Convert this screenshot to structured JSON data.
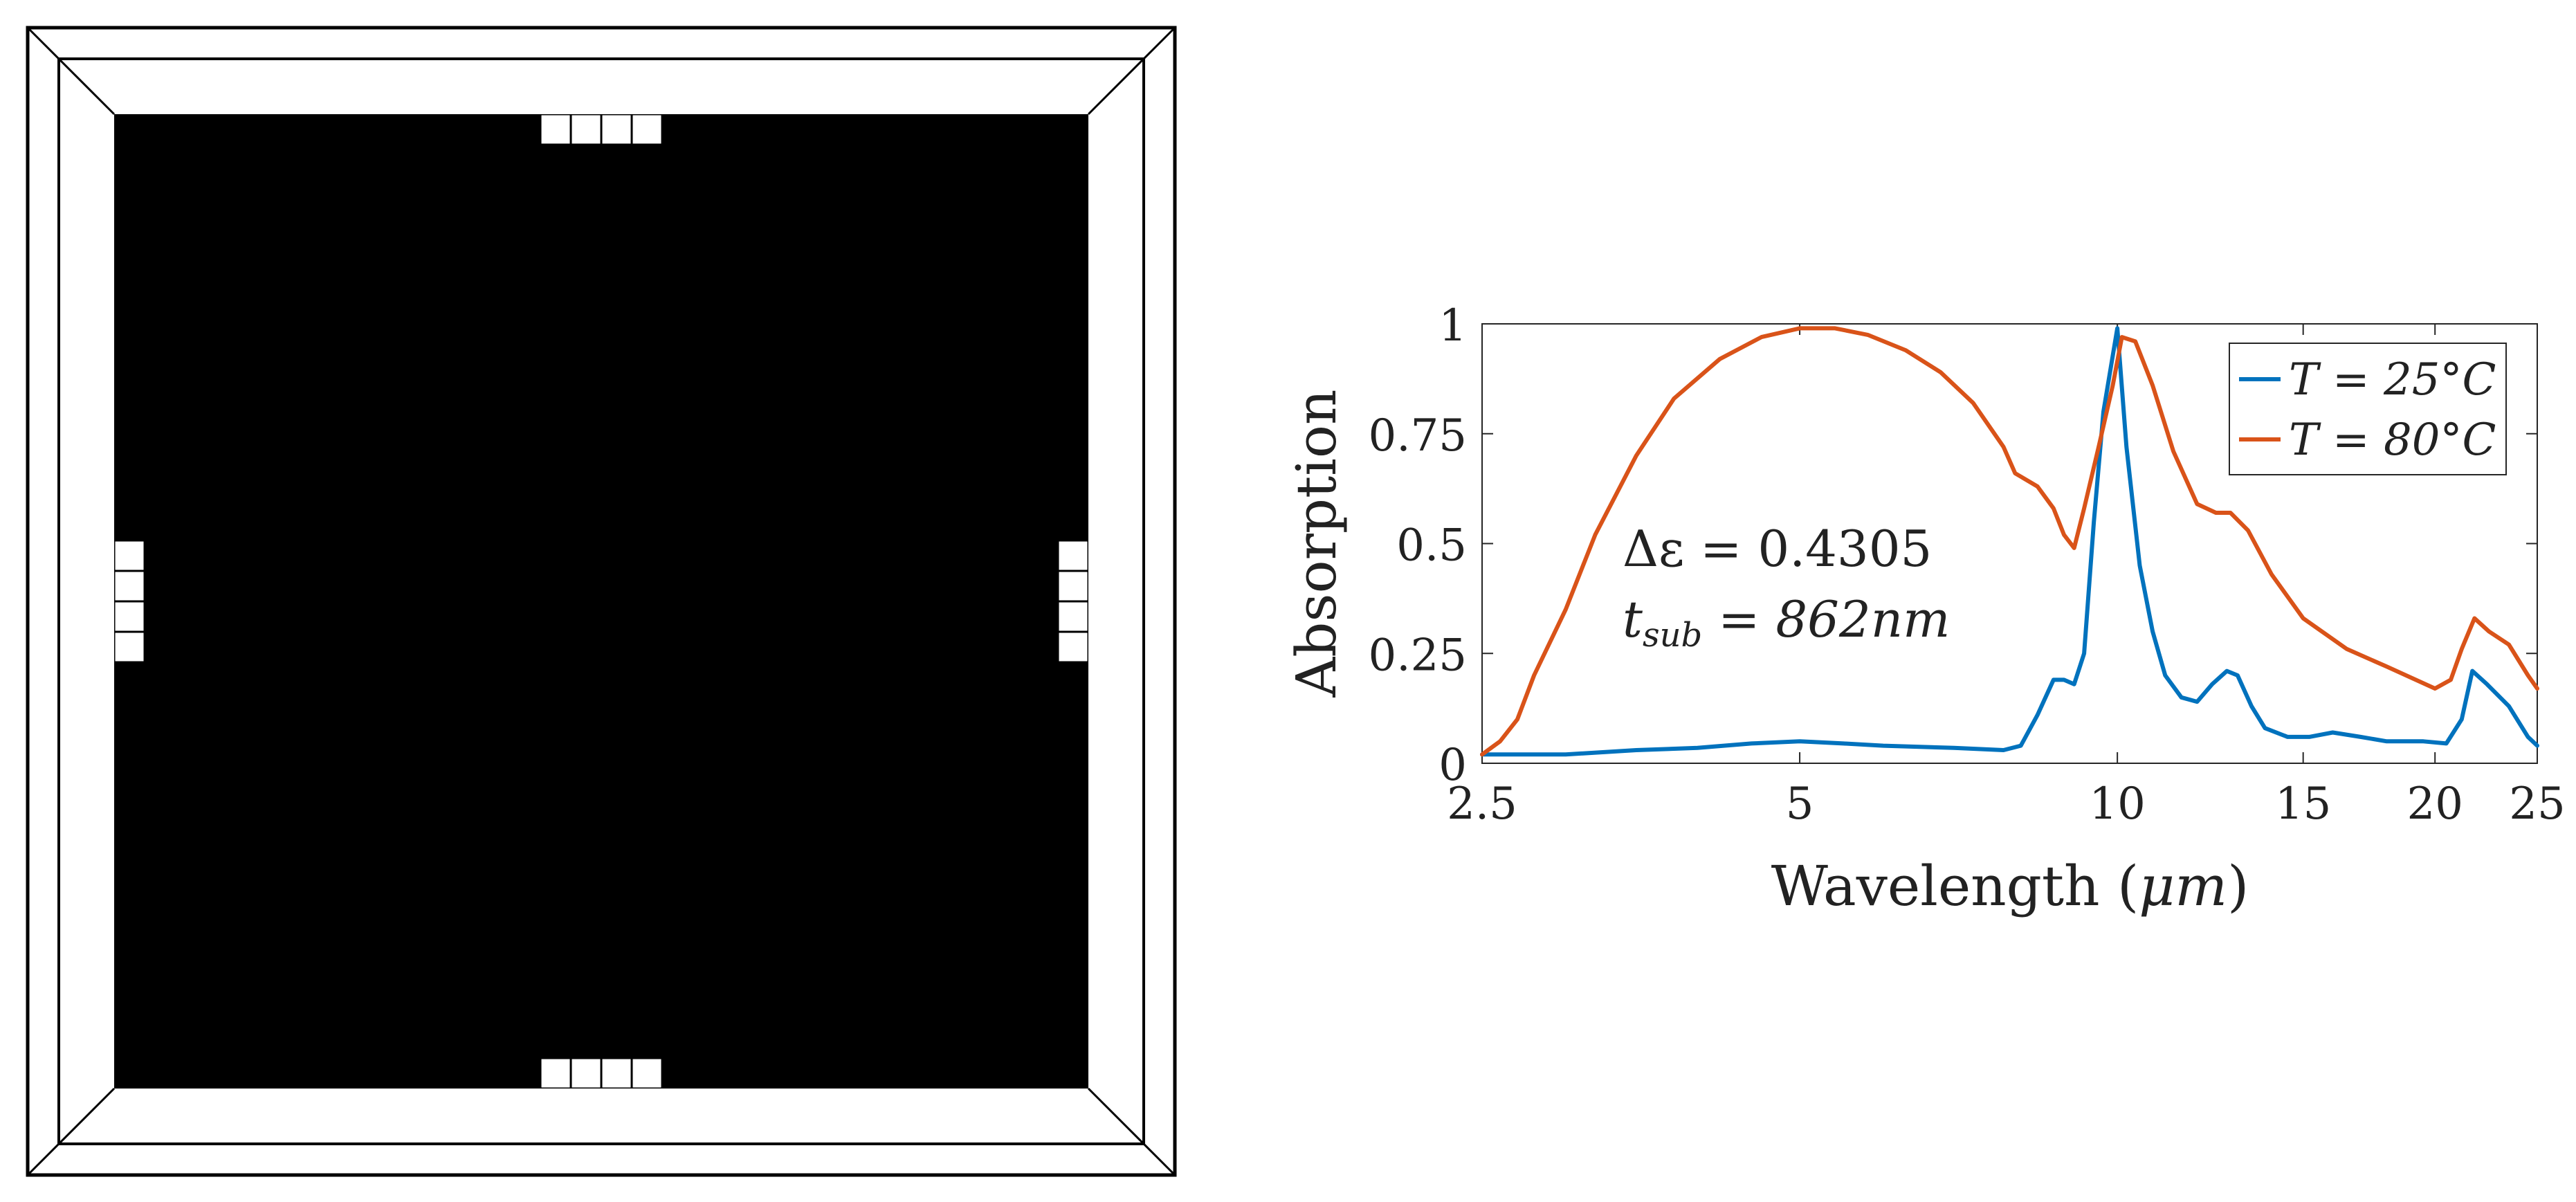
{
  "chart_data": [
    {
      "type": "pattern",
      "grid_size": 32,
      "symmetry": "eightfold (mirror across both axes and both diagonals)",
      "fill_colors": {
        "open": "#ffffff",
        "solid": "#000000",
        "frame": "#ffffff",
        "frame_line": "#000000"
      },
      "quadrant_rows": [
        "0000000000000011",
        "0000000000000000",
        "0000000000000000",
        "0000000000000000",
        "0000000000000000",
        "0000000000000000",
        "0000000000000000",
        "0000000000000000",
        "0000000000000000",
        "0000000000000000",
        "0000000000000000",
        "0000000000000000",
        "0000000000000000",
        "0000000000000000",
        "1000000000000000",
        "1000000000000000"
      ]
    },
    {
      "type": "line",
      "xscale": "log",
      "xlim": [
        2.5,
        25
      ],
      "ylim": [
        0,
        1
      ],
      "xticks": [
        2.5,
        5,
        10,
        15,
        20,
        25
      ],
      "xtick_labels": [
        "2.5",
        "5",
        "10",
        "15",
        "20",
        "25"
      ],
      "yticks": [
        0,
        0.25,
        0.5,
        0.75,
        1
      ],
      "ytick_labels": [
        "0",
        "0.25",
        "0.5",
        "0.75",
        "1"
      ],
      "xlabel": "Wavelength",
      "xlabel_unit": "μm",
      "ylabel": "Absorption",
      "grid": false,
      "legend_position": "top-right",
      "series": [
        {
          "name": "T = 25°C",
          "color": "#0072BD",
          "x": [
            2.5,
            2.6,
            2.8,
            3.0,
            3.5,
            4.0,
            4.5,
            5.0,
            5.5,
            6.0,
            7.0,
            7.8,
            8.1,
            8.4,
            8.7,
            8.9,
            9.1,
            9.3,
            9.5,
            9.7,
            10.0,
            10.2,
            10.5,
            10.8,
            11.1,
            11.5,
            11.9,
            12.3,
            12.7,
            13.0,
            13.4,
            13.8,
            14.5,
            15.2,
            16.0,
            17.0,
            18.0,
            19.5,
            20.5,
            21.2,
            21.7,
            22.4,
            23.5,
            24.5,
            25.0
          ],
          "y": [
            0.02,
            0.02,
            0.02,
            0.02,
            0.03,
            0.035,
            0.045,
            0.05,
            0.045,
            0.04,
            0.035,
            0.03,
            0.04,
            0.11,
            0.19,
            0.19,
            0.18,
            0.25,
            0.55,
            0.8,
            0.99,
            0.72,
            0.45,
            0.3,
            0.2,
            0.15,
            0.14,
            0.18,
            0.21,
            0.2,
            0.13,
            0.08,
            0.06,
            0.06,
            0.07,
            0.06,
            0.05,
            0.05,
            0.045,
            0.1,
            0.21,
            0.18,
            0.13,
            0.06,
            0.04
          ]
        },
        {
          "name": "T = 80°C",
          "color": "#D95319",
          "x": [
            2.5,
            2.6,
            2.7,
            2.8,
            3.0,
            3.2,
            3.5,
            3.8,
            4.2,
            4.6,
            5.0,
            5.4,
            5.8,
            6.3,
            6.8,
            7.3,
            7.8,
            8.0,
            8.4,
            8.7,
            8.9,
            9.1,
            9.3,
            9.6,
            9.9,
            10.1,
            10.4,
            10.8,
            11.3,
            11.9,
            12.4,
            12.8,
            13.3,
            14.0,
            15.0,
            16.5,
            18.0,
            20.0,
            20.7,
            21.2,
            21.8,
            22.5,
            23.5,
            24.5,
            25.0
          ],
          "y": [
            0.02,
            0.05,
            0.1,
            0.2,
            0.35,
            0.52,
            0.7,
            0.83,
            0.92,
            0.97,
            0.99,
            0.99,
            0.975,
            0.94,
            0.89,
            0.82,
            0.72,
            0.66,
            0.63,
            0.58,
            0.52,
            0.49,
            0.58,
            0.72,
            0.86,
            0.97,
            0.96,
            0.86,
            0.71,
            0.59,
            0.57,
            0.57,
            0.53,
            0.43,
            0.33,
            0.26,
            0.22,
            0.17,
            0.19,
            0.26,
            0.33,
            0.3,
            0.27,
            0.2,
            0.17
          ]
        }
      ],
      "annotations": [
        {
          "label": "Δε",
          "value": "0.4305"
        },
        {
          "label": "t",
          "subscript": "sub",
          "value": "862nm"
        }
      ]
    }
  ]
}
